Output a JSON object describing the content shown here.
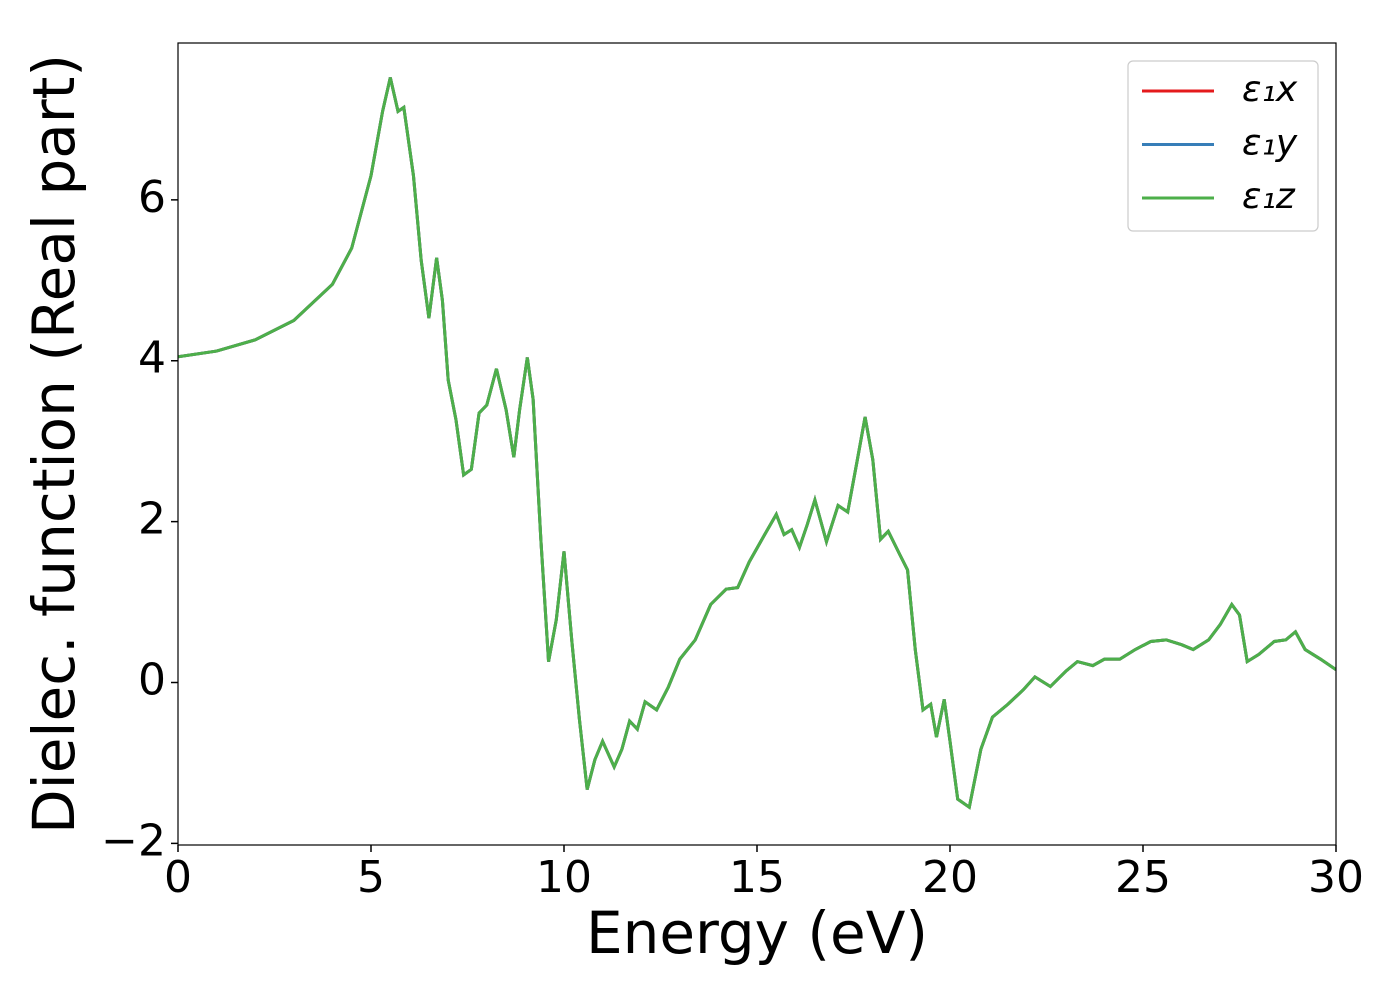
{
  "chart_data": {
    "type": "line",
    "x_label": "Energy (eV)",
    "y_label": "Dielec. function (Real part)",
    "x": [
      0,
      1,
      2,
      3,
      4,
      4.5,
      5,
      5.3,
      5.5,
      5.7,
      5.85,
      6.1,
      6.3,
      6.5,
      6.7,
      6.85,
      7.0,
      7.2,
      7.4,
      7.6,
      7.8,
      8.0,
      8.25,
      8.5,
      8.7,
      8.85,
      9.05,
      9.2,
      9.4,
      9.6,
      9.8,
      10.0,
      10.2,
      10.4,
      10.6,
      10.8,
      11.0,
      11.3,
      11.5,
      11.7,
      11.9,
      12.1,
      12.4,
      12.7,
      13.0,
      13.4,
      13.8,
      14.2,
      14.5,
      14.8,
      15.2,
      15.5,
      15.7,
      15.9,
      16.1,
      16.3,
      16.5,
      16.8,
      17.1,
      17.35,
      17.6,
      17.8,
      18.0,
      18.2,
      18.4,
      18.7,
      18.9,
      19.1,
      19.3,
      19.5,
      19.65,
      19.85,
      20.0,
      20.2,
      20.5,
      20.8,
      21.1,
      21.5,
      21.9,
      22.2,
      22.6,
      23.0,
      23.3,
      23.7,
      24.0,
      24.4,
      24.8,
      25.2,
      25.6,
      26.0,
      26.3,
      26.7,
      27.0,
      27.3,
      27.5,
      27.7,
      28.0,
      28.4,
      28.7,
      28.95,
      29.2,
      29.6,
      30.0
    ],
    "series": [
      {
        "name": "ε₁x",
        "color": "#e41a1c",
        "values": [
          4.05,
          4.12,
          4.26,
          4.5,
          4.95,
          5.4,
          6.3,
          7.1,
          7.52,
          7.1,
          7.15,
          6.3,
          5.25,
          4.53,
          5.28,
          4.75,
          3.76,
          3.27,
          2.58,
          2.65,
          3.35,
          3.45,
          3.9,
          3.39,
          2.8,
          3.39,
          4.04,
          3.52,
          1.78,
          0.26,
          0.78,
          1.63,
          0.53,
          -0.46,
          -1.33,
          -0.96,
          -0.73,
          -1.05,
          -0.83,
          -0.48,
          -0.58,
          -0.24,
          -0.34,
          -0.06,
          0.29,
          0.53,
          0.97,
          1.16,
          1.18,
          1.5,
          1.84,
          2.09,
          1.84,
          1.9,
          1.68,
          1.96,
          2.27,
          1.75,
          2.2,
          2.12,
          2.77,
          3.3,
          2.77,
          1.78,
          1.88,
          1.59,
          1.4,
          0.41,
          -0.34,
          -0.27,
          -0.68,
          -0.21,
          -0.73,
          -1.45,
          -1.55,
          -0.83,
          -0.43,
          -0.27,
          -0.09,
          0.07,
          -0.05,
          0.14,
          0.26,
          0.21,
          0.29,
          0.29,
          0.41,
          0.51,
          0.53,
          0.47,
          0.41,
          0.53,
          0.72,
          0.97,
          0.84,
          0.26,
          0.35,
          0.51,
          0.53,
          0.63,
          0.41,
          0.29,
          0.16
        ]
      },
      {
        "name": "ε₁y",
        "color": "#377eb8",
        "values": [
          4.05,
          4.12,
          4.26,
          4.5,
          4.95,
          5.4,
          6.3,
          7.1,
          7.52,
          7.1,
          7.15,
          6.3,
          5.25,
          4.53,
          5.28,
          4.75,
          3.76,
          3.27,
          2.58,
          2.65,
          3.35,
          3.45,
          3.9,
          3.39,
          2.8,
          3.39,
          4.04,
          3.52,
          1.78,
          0.26,
          0.78,
          1.63,
          0.53,
          -0.46,
          -1.33,
          -0.96,
          -0.73,
          -1.05,
          -0.83,
          -0.48,
          -0.58,
          -0.24,
          -0.34,
          -0.06,
          0.29,
          0.53,
          0.97,
          1.16,
          1.18,
          1.5,
          1.84,
          2.09,
          1.84,
          1.9,
          1.68,
          1.96,
          2.27,
          1.75,
          2.2,
          2.12,
          2.77,
          3.3,
          2.77,
          1.78,
          1.88,
          1.59,
          1.4,
          0.41,
          -0.34,
          -0.27,
          -0.68,
          -0.21,
          -0.73,
          -1.45,
          -1.55,
          -0.83,
          -0.43,
          -0.27,
          -0.09,
          0.07,
          -0.05,
          0.14,
          0.26,
          0.21,
          0.29,
          0.29,
          0.41,
          0.51,
          0.53,
          0.47,
          0.41,
          0.53,
          0.72,
          0.97,
          0.84,
          0.26,
          0.35,
          0.51,
          0.53,
          0.63,
          0.41,
          0.29,
          0.16
        ]
      },
      {
        "name": "ε₁z",
        "color": "#4daf4a",
        "values": [
          4.05,
          4.12,
          4.26,
          4.5,
          4.95,
          5.4,
          6.3,
          7.1,
          7.52,
          7.1,
          7.15,
          6.3,
          5.25,
          4.53,
          5.28,
          4.75,
          3.76,
          3.27,
          2.58,
          2.65,
          3.35,
          3.45,
          3.9,
          3.39,
          2.8,
          3.39,
          4.04,
          3.52,
          1.78,
          0.26,
          0.78,
          1.63,
          0.53,
          -0.46,
          -1.33,
          -0.96,
          -0.73,
          -1.05,
          -0.83,
          -0.48,
          -0.58,
          -0.24,
          -0.34,
          -0.06,
          0.29,
          0.53,
          0.97,
          1.16,
          1.18,
          1.5,
          1.84,
          2.09,
          1.84,
          1.9,
          1.68,
          1.96,
          2.27,
          1.75,
          2.2,
          2.12,
          2.77,
          3.3,
          2.77,
          1.78,
          1.88,
          1.59,
          1.4,
          0.41,
          -0.34,
          -0.27,
          -0.68,
          -0.21,
          -0.73,
          -1.45,
          -1.55,
          -0.83,
          -0.43,
          -0.27,
          -0.09,
          0.07,
          -0.05,
          0.14,
          0.26,
          0.21,
          0.29,
          0.29,
          0.41,
          0.51,
          0.53,
          0.47,
          0.41,
          0.53,
          0.72,
          0.97,
          0.84,
          0.26,
          0.35,
          0.51,
          0.53,
          0.63,
          0.41,
          0.29,
          0.16
        ]
      }
    ],
    "xlim": [
      0,
      30
    ],
    "ylim": [
      -2.02,
      7.95
    ],
    "xticks": [
      0,
      5,
      10,
      15,
      20,
      25,
      30
    ],
    "yticks": [
      {
        "value": -2,
        "label": "−2"
      },
      0,
      2,
      4,
      6
    ],
    "legend": "upper right"
  }
}
